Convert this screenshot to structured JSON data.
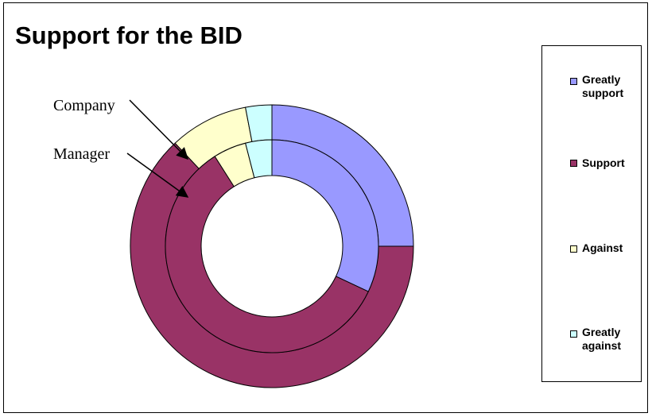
{
  "chart_data": {
    "type": "donut",
    "title": "Support for the BID",
    "categories": [
      "Greatly support",
      "Support",
      "Against",
      "Greatly against"
    ],
    "colors": [
      "#9999ff",
      "#993366",
      "#ffffcc",
      "#ccffff"
    ],
    "series": [
      {
        "name": "Company",
        "values": [
          25,
          63,
          9,
          3
        ]
      },
      {
        "name": "Manager",
        "values": [
          32,
          59,
          5,
          4
        ]
      }
    ],
    "legend_position": "right",
    "annotations": [
      "Company",
      "Manager"
    ]
  },
  "legend": {
    "items": [
      {
        "label": "Greatly support",
        "color": "#9999ff"
      },
      {
        "label": "Support",
        "color": "#993366"
      },
      {
        "label": "Against",
        "color": "#ffffcc"
      },
      {
        "label": "Greatly against",
        "color": "#ccffff"
      }
    ]
  }
}
